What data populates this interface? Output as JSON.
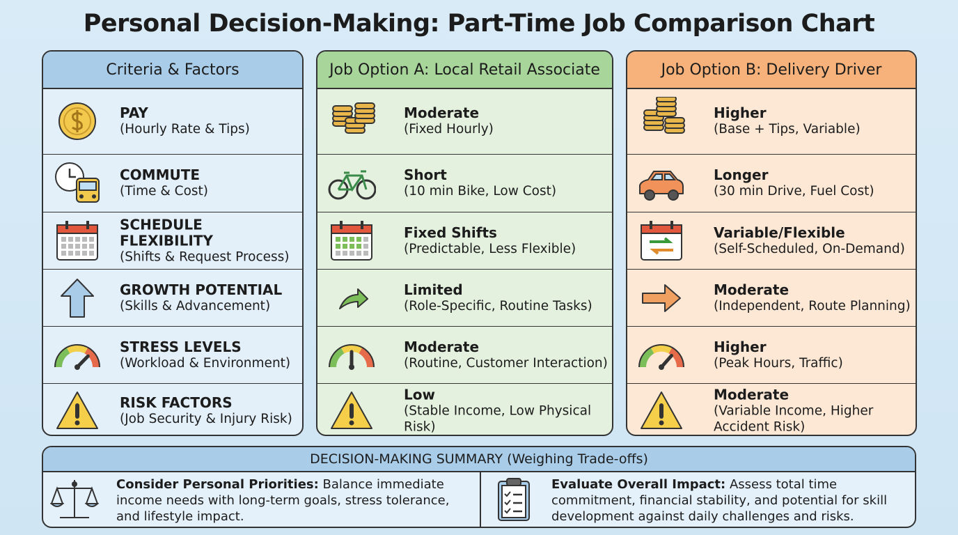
{
  "title": "Personal Decision-Making: Part-Time Job Comparison Chart",
  "columns": [
    {
      "header": "Criteria & Factors",
      "rows": [
        {
          "label": "PAY",
          "detail": "(Hourly Rate & Tips)"
        },
        {
          "label": "COMMUTE",
          "detail": "(Time & Cost)"
        },
        {
          "label": "SCHEDULE FLEXIBILITY",
          "detail": "(Shifts & Request Process)"
        },
        {
          "label": "GROWTH POTENTIAL",
          "detail": "(Skills & Advancement)"
        },
        {
          "label": "STRESS LEVELS",
          "detail": "(Workload & Environment)"
        },
        {
          "label": "RISK FACTORS",
          "detail": "(Job Security & Injury Risk)"
        }
      ]
    },
    {
      "header": "Job Option A: Local Retail Associate",
      "rows": [
        {
          "label": "Moderate",
          "detail": "(Fixed Hourly)"
        },
        {
          "label": "Short",
          "detail": "(10 min Bike, Low Cost)"
        },
        {
          "label": "Fixed Shifts",
          "detail": "(Predictable, Less Flexible)"
        },
        {
          "label": "Limited",
          "detail": "(Role-Specific, Routine Tasks)"
        },
        {
          "label": "Moderate",
          "detail": "(Routine, Customer Interaction)"
        },
        {
          "label": "Low",
          "detail": "(Stable Income, Low Physical Risk)"
        }
      ]
    },
    {
      "header": "Job Option B: Delivery Driver",
      "rows": [
        {
          "label": "Higher",
          "detail": "(Base + Tips, Variable)"
        },
        {
          "label": "Longer",
          "detail": "(30 min Drive, Fuel Cost)"
        },
        {
          "label": "Variable/Flexible",
          "detail": "(Self-Scheduled, On-Demand)"
        },
        {
          "label": "Moderate",
          "detail": "(Independent, Route Planning)"
        },
        {
          "label": "Higher",
          "detail": "(Peak Hours, Traffic)"
        },
        {
          "label": "Moderate",
          "detail": "(Variable Income, Higher Accident Risk)"
        }
      ]
    }
  ],
  "summary": {
    "title": "DECISION-MAKING SUMMARY (Weighing Trade-offs)",
    "items": [
      {
        "lead": "Consider Personal Priorities:",
        "text": "Balance immediate income needs with long-term goals, stress tolerance, and lifestyle impact."
      },
      {
        "lead": "Evaluate Overall Impact:",
        "text": "Assess total time commitment, financial stability, and potential for skill development against daily challenges and risks."
      }
    ]
  }
}
